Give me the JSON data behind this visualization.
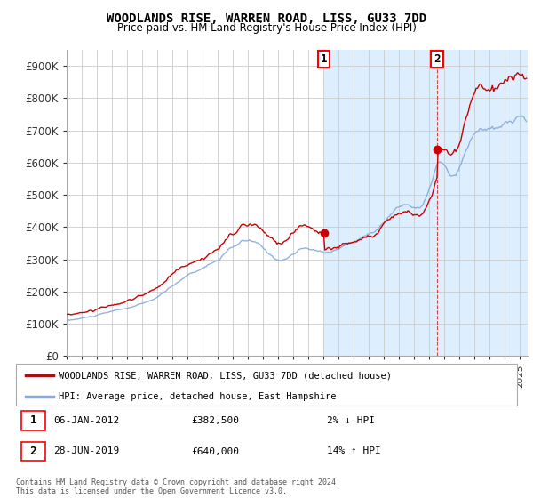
{
  "title": "WOODLANDS RISE, WARREN ROAD, LISS, GU33 7DD",
  "subtitle": "Price paid vs. HM Land Registry's House Price Index (HPI)",
  "ylabel_ticks": [
    "£0",
    "£100K",
    "£200K",
    "£300K",
    "£400K",
    "£500K",
    "£600K",
    "£700K",
    "£800K",
    "£900K"
  ],
  "ytick_values": [
    0,
    100000,
    200000,
    300000,
    400000,
    500000,
    600000,
    700000,
    800000,
    900000
  ],
  "ylim": [
    0,
    950000
  ],
  "xlim_start": 1995.0,
  "xlim_end": 2025.5,
  "background_color": "#ffffff",
  "plot_bg_color": "#ffffff",
  "shaded_region_start": 2012.02,
  "shaded_region_end": 2025.5,
  "shaded_color": "#ddeeff",
  "grid_color": "#cccccc",
  "hpi_color": "#88aadd",
  "price_color": "#cc0000",
  "legend_label_price": "WOODLANDS RISE, WARREN ROAD, LISS, GU33 7DD (detached house)",
  "legend_label_hpi": "HPI: Average price, detached house, East Hampshire",
  "sale1_date": 2012.02,
  "sale1_price": 382500,
  "sale2_date": 2019.49,
  "sale2_price": 640000,
  "sale1_info": "06-JAN-2012",
  "sale1_price_str": "£382,500",
  "sale1_hpi_str": "2% ↓ HPI",
  "sale2_info": "28-JUN-2019",
  "sale2_price_str": "£640,000",
  "sale2_hpi_str": "14% ↑ HPI",
  "footer": "Contains HM Land Registry data © Crown copyright and database right 2024.\nThis data is licensed under the Open Government Licence v3.0."
}
